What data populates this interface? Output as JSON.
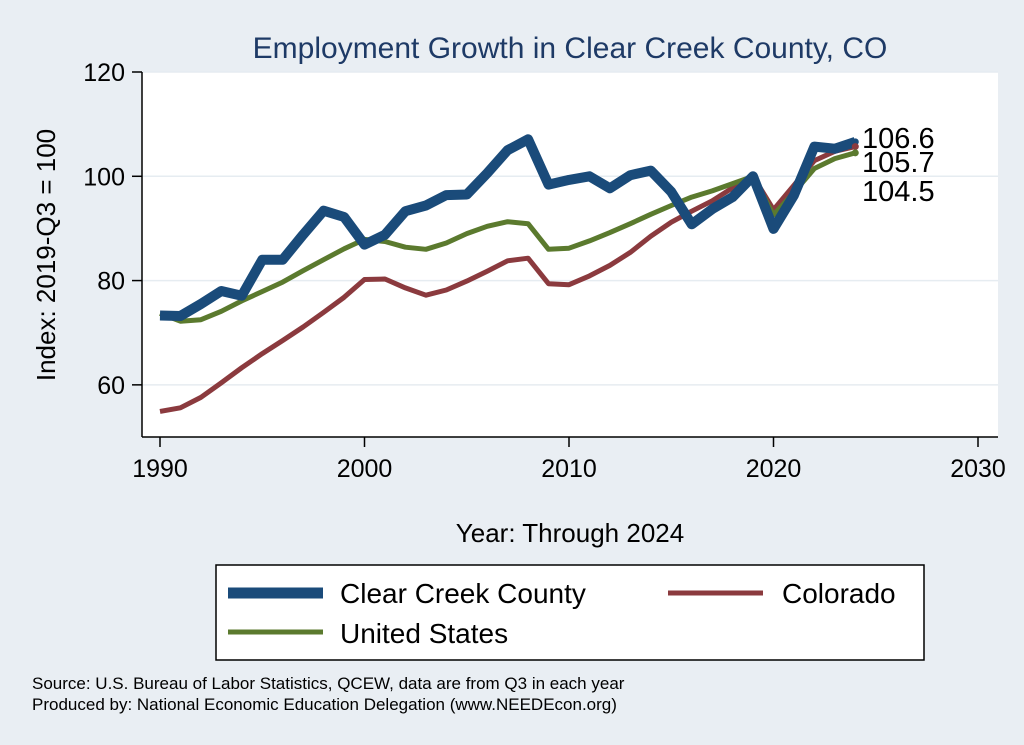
{
  "chart_data": {
    "type": "line",
    "title": "Employment Growth in Clear Creek County, CO",
    "xlabel": "Year: Through 2024",
    "ylabel": "Index: 2019-Q3 = 100",
    "xlim": [
      1990,
      2030
    ],
    "ylim": [
      50,
      120
    ],
    "xticks": [
      1990,
      2000,
      2010,
      2020,
      2030
    ],
    "yticks": [
      60,
      80,
      100,
      120
    ],
    "x": [
      1990,
      1991,
      1992,
      1993,
      1994,
      1995,
      1996,
      1997,
      1998,
      1999,
      2000,
      2001,
      2002,
      2003,
      2004,
      2005,
      2006,
      2007,
      2008,
      2009,
      2010,
      2011,
      2012,
      2013,
      2014,
      2015,
      2016,
      2017,
      2018,
      2019,
      2020,
      2021,
      2022,
      2023,
      2024
    ],
    "series": [
      {
        "name": "Clear Creek  County",
        "color": "#1a4b7a",
        "values": [
          73.3,
          73.2,
          75.5,
          78.0,
          77.1,
          84.0,
          84.0,
          88.8,
          93.4,
          92.2,
          86.9,
          88.8,
          93.3,
          94.4,
          96.4,
          96.5,
          100.6,
          105.0,
          107.1,
          98.4,
          99.3,
          100.0,
          97.7,
          100.2,
          101.1,
          97.0,
          90.8,
          93.7,
          96.0,
          100.0,
          89.9,
          96.4,
          105.7,
          105.3,
          106.6
        ]
      },
      {
        "name": "Colorado",
        "color": "#8b3a3e",
        "values": [
          54.9,
          55.6,
          57.6,
          60.4,
          63.3,
          66.0,
          68.5,
          71.1,
          73.9,
          76.8,
          80.2,
          80.3,
          78.6,
          77.2,
          78.2,
          79.9,
          81.8,
          83.8,
          84.3,
          79.4,
          79.2,
          80.9,
          82.9,
          85.4,
          88.5,
          91.2,
          93.3,
          95.3,
          97.8,
          100.0,
          93.6,
          98.3,
          103.0,
          104.8,
          105.7
        ]
      },
      {
        "name": "United States",
        "color": "#5b7a2e",
        "values": [
          73.7,
          72.2,
          72.5,
          74.1,
          76.1,
          77.9,
          79.7,
          81.9,
          84.0,
          86.1,
          87.9,
          87.5,
          86.4,
          86.0,
          87.2,
          89.0,
          90.4,
          91.3,
          90.9,
          86.0,
          86.2,
          87.6,
          89.2,
          90.9,
          92.7,
          94.4,
          96.0,
          97.2,
          98.6,
          100.0,
          92.6,
          96.9,
          101.5,
          103.4,
          104.5
        ]
      }
    ],
    "end_labels": [
      "106.6",
      "105.7",
      "104.5"
    ],
    "legend": [
      "Clear Creek  County",
      "Colorado",
      "United States"
    ],
    "legend_position": "bottom",
    "grid": true
  },
  "source": {
    "line1": "Source: U.S. Bureau of Labor Statistics, QCEW, data are from Q3 in each year",
    "line2": "Produced by: National Economic Education Delegation (www.NEEDEcon.org)"
  }
}
